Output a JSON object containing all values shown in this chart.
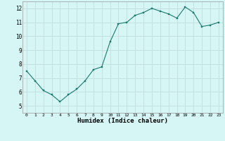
{
  "x": [
    0,
    1,
    2,
    3,
    4,
    5,
    6,
    7,
    8,
    9,
    10,
    11,
    12,
    13,
    14,
    15,
    16,
    17,
    18,
    19,
    20,
    21,
    22,
    23
  ],
  "y": [
    7.5,
    6.8,
    6.1,
    5.8,
    5.3,
    5.8,
    6.2,
    6.8,
    7.6,
    7.8,
    9.6,
    10.9,
    11.0,
    11.5,
    11.7,
    12.0,
    11.8,
    11.6,
    11.3,
    12.1,
    11.7,
    10.7,
    10.8,
    11.0
  ],
  "line_color": "#1a7a6e",
  "marker_color": "#1a7a6e",
  "bg_color": "#d6f5f5",
  "grid_color": "#c0dede",
  "xlabel": "Humidex (Indice chaleur)",
  "xlim": [
    -0.5,
    23.5
  ],
  "ylim": [
    4.5,
    12.5
  ],
  "yticks": [
    5,
    6,
    7,
    8,
    9,
    10,
    11,
    12
  ],
  "xticks": [
    0,
    1,
    2,
    3,
    4,
    5,
    6,
    7,
    8,
    9,
    10,
    11,
    12,
    13,
    14,
    15,
    16,
    17,
    18,
    19,
    20,
    21,
    22,
    23
  ]
}
